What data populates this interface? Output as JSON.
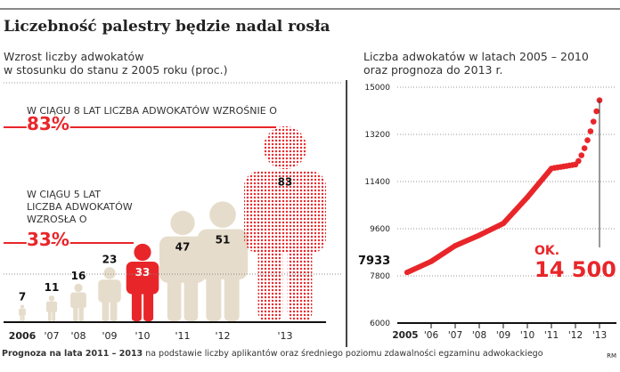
{
  "title": "Liczebność palestry będzie nadal rosła",
  "footer": {
    "bold": "Prognoza na lata 2011 – 2013",
    "rest": " na podstawie liczby aplikantów oraz średniego poziomu zdawalności egzaminu adwokackiego",
    "credit": "RM"
  },
  "colors": {
    "accent": "#e8262a",
    "figure": "#e6dccb",
    "forecast_dots": "#e8262a"
  },
  "chart_data": [
    {
      "type": "bar",
      "pictogram": "person",
      "subtitle_line1": "Wzrost liczby adwokatów",
      "subtitle_line2": "w stosunku do stanu z 2005 roku (proc.)",
      "categories": [
        "2006",
        "'07",
        "'08",
        "'09",
        "'10",
        "'11",
        "'12",
        "'13"
      ],
      "values": [
        7,
        11,
        16,
        23,
        33,
        47,
        51,
        83
      ],
      "highlighted": "'10",
      "forecast": [
        "'11",
        "'12",
        "'13"
      ],
      "annotations": [
        {
          "line1": "W CIĄGU 8 LAT LICZBA ADWOKATÓW WZROŚNIE O",
          "value": "83%"
        },
        {
          "line1": "W CIĄGU 5 LAT",
          "line2": "LICZBA ADWOKATÓW",
          "line3": "WZROSŁA O",
          "value": "33%"
        }
      ]
    },
    {
      "type": "line",
      "subtitle_line1": "Liczba adwokatów w latach 2005 – 2010",
      "subtitle_line2": "oraz prognoza do 2013 r.",
      "x": [
        "2005",
        "'06",
        "'07",
        "'08",
        "'09",
        "'10",
        "'11",
        "'12",
        "'13"
      ],
      "y": [
        7933,
        8350,
        8950,
        9350,
        9800,
        10800,
        11900,
        12050,
        14500
      ],
      "yticks": [
        "6000",
        "7800",
        "9600",
        "11400",
        "13200",
        "15000"
      ],
      "ylim": [
        6000,
        15000
      ],
      "grid": true,
      "start_label": "7933",
      "end_label_prefix": "OK.",
      "end_label": "14 500"
    }
  ]
}
